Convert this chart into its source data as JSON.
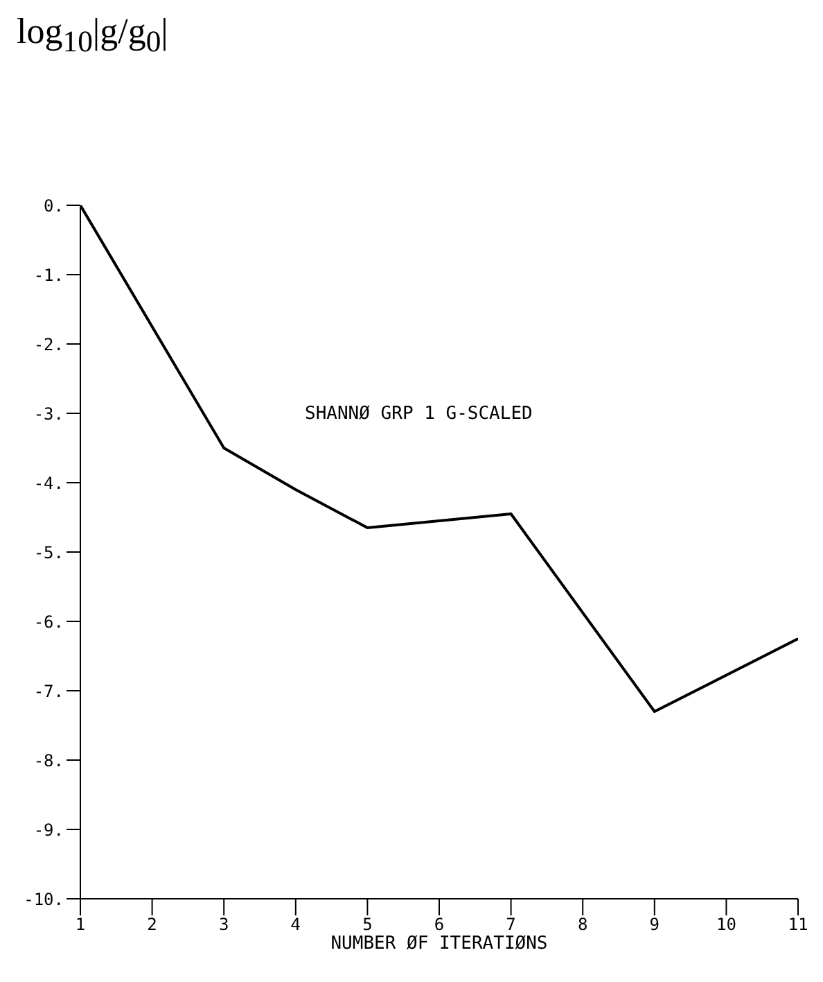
{
  "chart_data": {
    "type": "line",
    "ylabel": "log$_{10}$|g/g$_{0}$|",
    "xlabel": "NUMBER ØF ITERATIØNS",
    "annotations": [
      "SHANNØ GRP 1 G-SCALED"
    ],
    "x": [
      1,
      3,
      4,
      5,
      7,
      9,
      11
    ],
    "values": [
      0,
      -3.5,
      -4.1,
      -4.65,
      -4.45,
      -7.3,
      -6.25
    ],
    "color": "#000000",
    "marker": "none",
    "line_style": "solid",
    "grid": false,
    "legend": false,
    "xlim": [
      1,
      11
    ],
    "xticks": [
      1,
      2,
      3,
      4,
      5,
      6,
      7,
      8,
      9,
      10,
      11
    ],
    "ylim": [
      -10,
      0
    ],
    "yticks": [
      {
        "value": 0,
        "label": "0."
      },
      {
        "value": -1,
        "label": "-1."
      },
      {
        "value": -2,
        "label": "-2."
      },
      {
        "value": -3,
        "label": "-3."
      },
      {
        "value": -4,
        "label": "-4."
      },
      {
        "value": -5,
        "label": "-5."
      },
      {
        "value": -6,
        "label": "-6."
      },
      {
        "value": -7,
        "label": "-7."
      },
      {
        "value": -8,
        "label": "-8."
      },
      {
        "value": -9,
        "label": "-9."
      },
      {
        "value": -10,
        "label": "-10."
      }
    ]
  }
}
